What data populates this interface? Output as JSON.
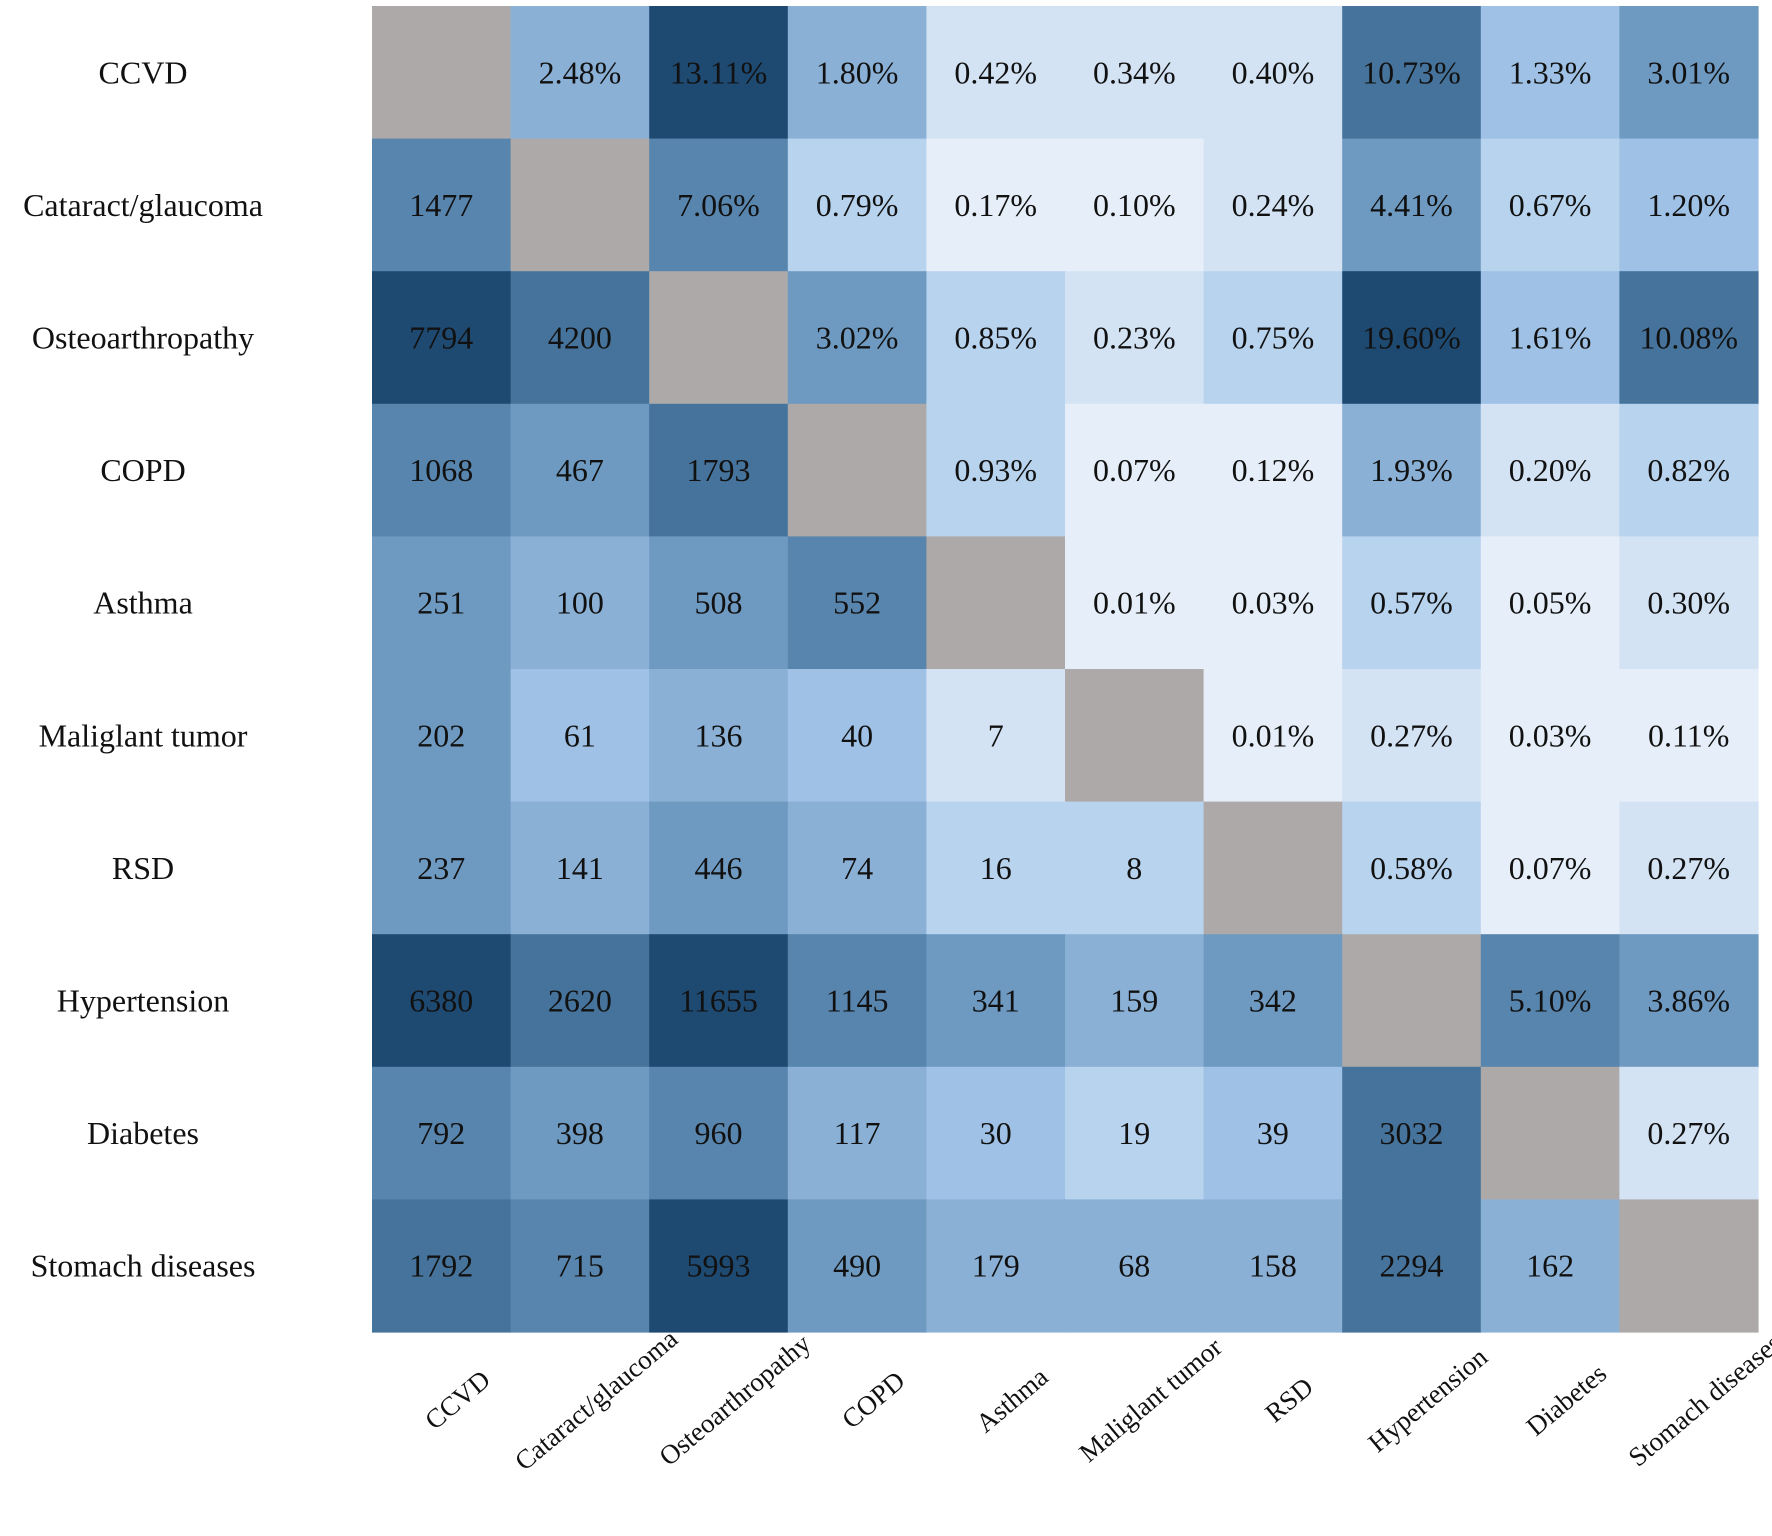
{
  "chart_data": {
    "type": "heatmap",
    "title": "",
    "xlabel": "",
    "ylabel": "",
    "grid": false,
    "legend": "none",
    "categories": [
      "CCVD",
      "Cataract/glaucoma",
      "Osteoarthropathy",
      "COPD",
      "Asthma",
      "Maliglant tumor",
      "RSD",
      "Hypertension",
      "Diabetes",
      "Stomach diseases"
    ],
    "upper_triangle_unit": "percent",
    "lower_triangle_unit": "count",
    "diagonal": "none",
    "matrix": [
      [
        null,
        2.48,
        13.11,
        1.8,
        0.42,
        0.34,
        0.4,
        10.73,
        1.33,
        3.01
      ],
      [
        1477,
        null,
        7.06,
        0.79,
        0.17,
        0.1,
        0.24,
        4.41,
        0.67,
        1.2
      ],
      [
        7794,
        4200,
        null,
        3.02,
        0.85,
        0.23,
        0.75,
        19.6,
        1.61,
        10.08
      ],
      [
        1068,
        467,
        1793,
        null,
        0.93,
        0.07,
        0.12,
        1.93,
        0.2,
        0.82
      ],
      [
        251,
        100,
        508,
        552,
        null,
        0.01,
        0.03,
        0.57,
        0.05,
        0.3
      ],
      [
        202,
        61,
        136,
        40,
        7,
        null,
        0.01,
        0.27,
        0.03,
        0.11
      ],
      [
        237,
        141,
        446,
        74,
        16,
        8,
        null,
        0.58,
        0.07,
        0.27
      ],
      [
        6380,
        2620,
        11655,
        1145,
        341,
        159,
        342,
        null,
        5.1,
        3.86
      ],
      [
        792,
        398,
        960,
        117,
        30,
        19,
        39,
        3032,
        null,
        0.27
      ],
      [
        1792,
        715,
        5993,
        490,
        179,
        68,
        158,
        2294,
        162,
        null
      ]
    ],
    "cell_labels": [
      [
        "",
        "2.48%",
        "13.11%",
        "1.80%",
        "0.42%",
        "0.34%",
        "0.40%",
        "10.73%",
        "1.33%",
        "3.01%"
      ],
      [
        "1477",
        "",
        "7.06%",
        "0.79%",
        "0.17%",
        "0.10%",
        "0.24%",
        "4.41%",
        "0.67%",
        "1.20%"
      ],
      [
        "7794",
        "4200",
        "",
        "3.02%",
        "0.85%",
        "0.23%",
        "0.75%",
        "19.60%",
        "1.61%",
        "10.08%"
      ],
      [
        "1068",
        "467",
        "1793",
        "",
        "0.93%",
        "0.07%",
        "0.12%",
        "1.93%",
        "0.20%",
        "0.82%"
      ],
      [
        "251",
        "100",
        "508",
        "552",
        "",
        "0.01%",
        "0.03%",
        "0.57%",
        "0.05%",
        "0.30%"
      ],
      [
        "202",
        "61",
        "136",
        "40",
        "7",
        "",
        "0.01%",
        "0.27%",
        "0.03%",
        "0.11%"
      ],
      [
        "237",
        "141",
        "446",
        "74",
        "16",
        "8",
        "",
        "0.58%",
        "0.07%",
        "0.27%"
      ],
      [
        "6380",
        "2620",
        "11655",
        "1145",
        "341",
        "159",
        "342",
        "",
        "5.10%",
        "3.86%"
      ],
      [
        "792",
        "398",
        "960",
        "117",
        "30",
        "19",
        "39",
        "3032",
        "",
        "0.27%"
      ],
      [
        "1792",
        "715",
        "5993",
        "490",
        "179",
        "68",
        "158",
        "2294",
        "162",
        ""
      ]
    ],
    "colors": {
      "diagonal": "#ada9a8",
      "scale": [
        "#e6eff9",
        "#d3e3f4",
        "#b8d3ee",
        "#9ec1e5",
        "#8ab0d6",
        "#6e9ac2",
        "#5885ae",
        "#46739b",
        "#1e4a72"
      ]
    }
  }
}
